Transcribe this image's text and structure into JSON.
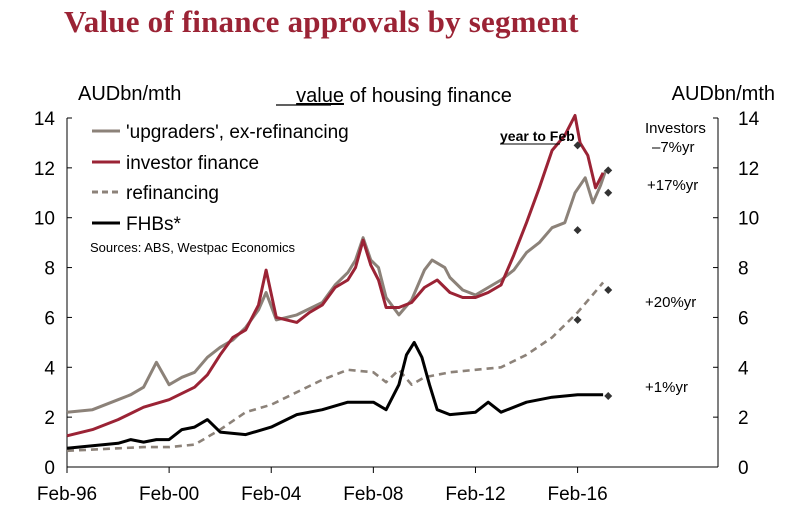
{
  "slide": {
    "title": "Value of finance approvals by segment"
  },
  "chart_data": {
    "type": "line",
    "title_underlined": "value",
    "title_rest": " of housing finance",
    "left_unit": "AUDbn/mth",
    "right_unit": "AUDbn/mth",
    "source": "Sources: ABS, Westpac Economics",
    "x_ticks": [
      "Feb-96",
      "Feb-00",
      "Feb-04",
      "Feb-08",
      "Feb-12",
      "Feb-16"
    ],
    "x_tick_years": [
      1996,
      2000,
      2004,
      2008,
      2012,
      2016
    ],
    "xlim": [
      1996,
      2021.5
    ],
    "ylim": [
      0,
      14
    ],
    "y_ticks": [
      "0",
      "2",
      "4",
      "6",
      "8",
      "10",
      "12",
      "14"
    ],
    "y_tick_values": [
      0,
      2,
      4,
      6,
      8,
      10,
      12,
      14
    ],
    "grid": false,
    "legend_placement": "top-left",
    "series": [
      {
        "name": "'upgraders', ex-refinancing",
        "color": "#8c8279",
        "dash": "solid",
        "points": [
          [
            1996.0,
            2.2
          ],
          [
            1997.0,
            2.3
          ],
          [
            1998.0,
            2.7
          ],
          [
            1998.5,
            2.9
          ],
          [
            1999.0,
            3.2
          ],
          [
            1999.5,
            4.2
          ],
          [
            2000.0,
            3.3
          ],
          [
            2000.5,
            3.6
          ],
          [
            2001.0,
            3.8
          ],
          [
            2001.5,
            4.4
          ],
          [
            2002.0,
            4.8
          ],
          [
            2002.5,
            5.1
          ],
          [
            2003.0,
            5.6
          ],
          [
            2003.5,
            6.3
          ],
          [
            2003.8,
            7.0
          ],
          [
            2004.2,
            5.9
          ],
          [
            2005.0,
            6.1
          ],
          [
            2006.0,
            6.6
          ],
          [
            2006.5,
            7.3
          ],
          [
            2007.0,
            7.8
          ],
          [
            2007.3,
            8.3
          ],
          [
            2007.6,
            9.2
          ],
          [
            2007.9,
            8.3
          ],
          [
            2008.2,
            8.0
          ],
          [
            2008.5,
            6.8
          ],
          [
            2009.0,
            6.1
          ],
          [
            2009.5,
            6.7
          ],
          [
            2010.0,
            7.9
          ],
          [
            2010.3,
            8.3
          ],
          [
            2010.8,
            8.0
          ],
          [
            2011.0,
            7.6
          ],
          [
            2011.5,
            7.1
          ],
          [
            2012.0,
            6.9
          ],
          [
            2012.5,
            7.2
          ],
          [
            2013.0,
            7.5
          ],
          [
            2013.5,
            7.9
          ],
          [
            2014.0,
            8.6
          ],
          [
            2014.5,
            9.0
          ],
          [
            2015.0,
            9.6
          ],
          [
            2015.5,
            9.8
          ],
          [
            2015.9,
            11.0
          ],
          [
            2016.3,
            11.6
          ],
          [
            2016.6,
            10.6
          ],
          [
            2016.9,
            11.3
          ],
          [
            2017.1,
            11.9
          ]
        ]
      },
      {
        "name": "investor finance",
        "color": "#9b2335",
        "dash": "solid",
        "points": [
          [
            1996.0,
            1.25
          ],
          [
            1997.0,
            1.5
          ],
          [
            1998.0,
            1.9
          ],
          [
            1999.0,
            2.4
          ],
          [
            2000.0,
            2.7
          ],
          [
            2001.0,
            3.2
          ],
          [
            2001.5,
            3.7
          ],
          [
            2002.0,
            4.5
          ],
          [
            2002.5,
            5.2
          ],
          [
            2003.0,
            5.5
          ],
          [
            2003.5,
            6.5
          ],
          [
            2003.8,
            7.9
          ],
          [
            2004.2,
            6.0
          ],
          [
            2005.0,
            5.8
          ],
          [
            2005.5,
            6.2
          ],
          [
            2006.0,
            6.5
          ],
          [
            2006.5,
            7.2
          ],
          [
            2007.0,
            7.5
          ],
          [
            2007.3,
            8.0
          ],
          [
            2007.6,
            9.1
          ],
          [
            2007.9,
            8.1
          ],
          [
            2008.2,
            7.5
          ],
          [
            2008.5,
            6.4
          ],
          [
            2009.0,
            6.4
          ],
          [
            2009.5,
            6.6
          ],
          [
            2010.0,
            7.2
          ],
          [
            2010.5,
            7.5
          ],
          [
            2011.0,
            7.0
          ],
          [
            2011.5,
            6.8
          ],
          [
            2012.0,
            6.8
          ],
          [
            2012.5,
            7.0
          ],
          [
            2013.0,
            7.3
          ],
          [
            2013.5,
            8.5
          ],
          [
            2014.0,
            9.8
          ],
          [
            2014.5,
            11.2
          ],
          [
            2015.0,
            12.7
          ],
          [
            2015.5,
            13.3
          ],
          [
            2015.9,
            14.1
          ],
          [
            2016.1,
            13.0
          ],
          [
            2016.4,
            12.5
          ],
          [
            2016.7,
            11.2
          ],
          [
            2017.0,
            11.8
          ]
        ]
      },
      {
        "name": "refinancing",
        "color": "#8c8279",
        "dash": "dashed",
        "points": [
          [
            1996.0,
            0.65
          ],
          [
            1997.0,
            0.7
          ],
          [
            1998.0,
            0.75
          ],
          [
            1999.0,
            0.8
          ],
          [
            2000.0,
            0.8
          ],
          [
            2001.0,
            0.9
          ],
          [
            2002.0,
            1.5
          ],
          [
            2003.0,
            2.2
          ],
          [
            2004.0,
            2.5
          ],
          [
            2005.0,
            3.0
          ],
          [
            2006.0,
            3.5
          ],
          [
            2007.0,
            3.9
          ],
          [
            2008.0,
            3.8
          ],
          [
            2008.5,
            3.4
          ],
          [
            2009.0,
            3.9
          ],
          [
            2009.5,
            3.3
          ],
          [
            2010.0,
            3.6
          ],
          [
            2011.0,
            3.8
          ],
          [
            2012.0,
            3.9
          ],
          [
            2013.0,
            4.0
          ],
          [
            2014.0,
            4.5
          ],
          [
            2015.0,
            5.2
          ],
          [
            2016.0,
            6.2
          ],
          [
            2016.5,
            6.8
          ],
          [
            2017.0,
            7.4
          ]
        ]
      },
      {
        "name": "FHBs*",
        "color": "#000000",
        "dash": "solid",
        "points": [
          [
            1996.0,
            0.75
          ],
          [
            1997.0,
            0.85
          ],
          [
            1998.0,
            0.95
          ],
          [
            1998.5,
            1.1
          ],
          [
            1999.0,
            1.0
          ],
          [
            1999.5,
            1.1
          ],
          [
            2000.0,
            1.1
          ],
          [
            2000.5,
            1.5
          ],
          [
            2001.0,
            1.6
          ],
          [
            2001.5,
            1.9
          ],
          [
            2002.0,
            1.4
          ],
          [
            2003.0,
            1.3
          ],
          [
            2004.0,
            1.6
          ],
          [
            2005.0,
            2.1
          ],
          [
            2006.0,
            2.3
          ],
          [
            2007.0,
            2.6
          ],
          [
            2008.0,
            2.6
          ],
          [
            2008.5,
            2.3
          ],
          [
            2009.0,
            3.3
          ],
          [
            2009.3,
            4.5
          ],
          [
            2009.6,
            5.0
          ],
          [
            2009.9,
            4.4
          ],
          [
            2010.2,
            3.3
          ],
          [
            2010.5,
            2.3
          ],
          [
            2011.0,
            2.1
          ],
          [
            2012.0,
            2.2
          ],
          [
            2012.5,
            2.6
          ],
          [
            2013.0,
            2.2
          ],
          [
            2014.0,
            2.6
          ],
          [
            2015.0,
            2.8
          ],
          [
            2016.0,
            2.9
          ],
          [
            2017.0,
            2.9
          ]
        ]
      }
    ],
    "markers": [
      {
        "x": 2016.0,
        "y": 12.9
      },
      {
        "x": 2016.0,
        "y": 9.5
      },
      {
        "x": 2016.0,
        "y": 5.9
      },
      {
        "x": 2017.2,
        "y": 11.9
      },
      {
        "x": 2017.2,
        "y": 11.0
      },
      {
        "x": 2017.2,
        "y": 7.1
      },
      {
        "x": 2017.2,
        "y": 2.85
      }
    ],
    "annotations": {
      "year_to": "year to Feb",
      "investors_label": "Investors",
      "investors_change": "–7%yr",
      "upgraders_change": "+17%yr",
      "refinancing_change": "+20%yr",
      "fhb_change": "+1%yr"
    }
  }
}
